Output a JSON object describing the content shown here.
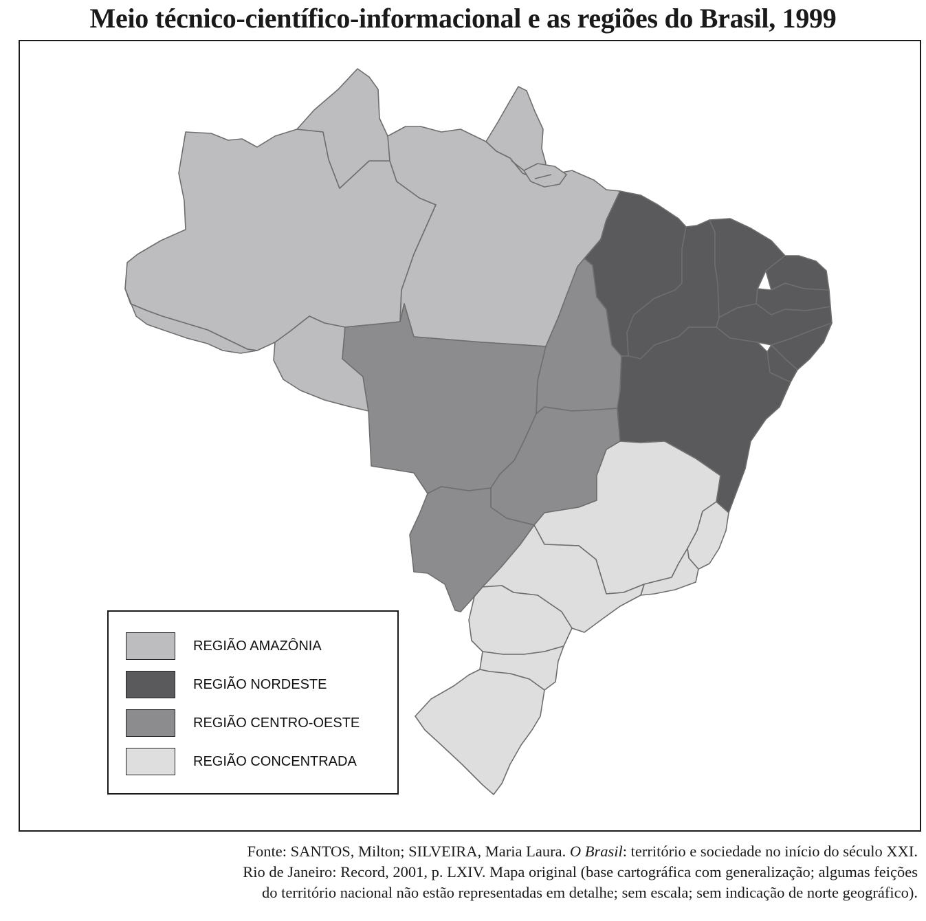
{
  "title": "Meio técnico-científico-informacional e as regiões do Brasil, 1999",
  "colors": {
    "amazonia": "#bdbdbf",
    "nordeste": "#5a5a5c",
    "centro_oeste": "#8c8c8e",
    "concentrada": "#dedede",
    "border": "#6e6e6e",
    "frame": "#1a1a1a"
  },
  "map": {
    "name": "Brasil",
    "regions": [
      {
        "id": "amazonia",
        "label": "REGIÃO AMAZÔNIA"
      },
      {
        "id": "nordeste",
        "label": "REGIÃO NORDESTE"
      },
      {
        "id": "centro_oeste",
        "label": "REGIÃO CENTRO-OESTE"
      },
      {
        "id": "concentrada",
        "label": "REGIÃO CONCENTRADA"
      }
    ]
  },
  "legend": {
    "items": [
      {
        "label": "REGIÃO AMAZÔNIA",
        "color": "#bdbdbf"
      },
      {
        "label": "REGIÃO NORDESTE",
        "color": "#5a5a5c"
      },
      {
        "label": "REGIÃO CENTRO-OESTE",
        "color": "#8c8c8e"
      },
      {
        "label": "REGIÃO CONCENTRADA",
        "color": "#dedede"
      }
    ]
  },
  "source": {
    "line1_prefix": "Fonte: SANTOS, Milton; SILVEIRA, Maria Laura. ",
    "line1_italic": "O Brasil",
    "line1_suffix": ": território e sociedade no início do século XXI.",
    "line2": "Rio de Janeiro: Record, 2001, p. LXIV. Mapa original (base cartográfica com generalização; algumas feições",
    "line3": "do território nacional não estão representadas em detalhe; sem escala; sem indicação de norte geográfico)."
  }
}
